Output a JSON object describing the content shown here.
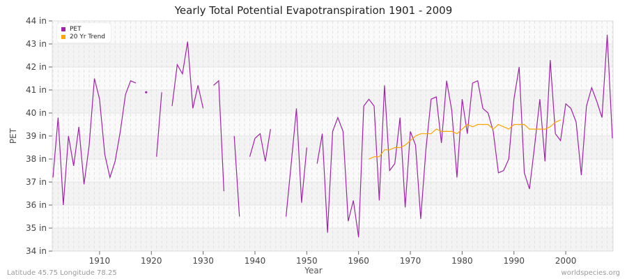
{
  "chart_data": {
    "type": "line",
    "title": "Yearly Total Potential Evapotranspiration 1901 - 2009",
    "xlabel": "Year",
    "ylabel": "PET",
    "xlim": [
      1901,
      2009
    ],
    "ylim": [
      34,
      44
    ],
    "yticks": [
      "34 in",
      "35 in",
      "36 in",
      "37 in",
      "38 in",
      "39 in",
      "40 in",
      "41 in",
      "42 in",
      "43 in",
      "44 in"
    ],
    "xticks": [
      "1910",
      "1920",
      "1930",
      "1940",
      "1950",
      "1960",
      "1970",
      "1980",
      "1990",
      "2000"
    ],
    "legend_position": "top-left",
    "grid": true,
    "series": [
      {
        "name": "PET",
        "color": "#a020a8",
        "start_year": 1901,
        "values": [
          37.2,
          39.8,
          36.0,
          39.0,
          37.7,
          39.4,
          36.9,
          38.6,
          41.5,
          40.6,
          38.2,
          37.2,
          37.9,
          39.2,
          40.8,
          41.4,
          41.3,
          null,
          40.9,
          null,
          38.1,
          40.9,
          null,
          40.3,
          42.1,
          41.7,
          43.1,
          40.2,
          41.2,
          40.2,
          null,
          41.2,
          41.4,
          36.6,
          null,
          39.0,
          35.5,
          null,
          38.1,
          38.9,
          39.1,
          37.9,
          39.3,
          null,
          null,
          35.5,
          37.8,
          40.2,
          36.1,
          38.5,
          null,
          37.8,
          39.1,
          34.8,
          39.2,
          39.8,
          39.2,
          35.3,
          36.2,
          34.6,
          40.3,
          40.6,
          40.3,
          36.2,
          41.2,
          37.5,
          37.8,
          39.8,
          35.9,
          39.2,
          38.6,
          35.4,
          38.4,
          40.6,
          40.7,
          38.7,
          41.4,
          40.1,
          37.2,
          40.6,
          39.1,
          41.3,
          41.4,
          40.2,
          40.0,
          39.2,
          37.4,
          37.5,
          38.0,
          40.6,
          42.0,
          37.4,
          36.7,
          38.6,
          40.6,
          37.9,
          42.3,
          39.1,
          38.8,
          40.4,
          40.2,
          39.6,
          37.3,
          40.3,
          41.1,
          40.5,
          39.8,
          43.4,
          38.9
        ]
      },
      {
        "name": "20 Yr Trend",
        "color": "#ffa500",
        "start_year": 1962,
        "values": [
          38.0,
          38.1,
          38.1,
          38.4,
          38.4,
          38.5,
          38.5,
          38.6,
          38.8,
          39.0,
          39.1,
          39.1,
          39.1,
          39.3,
          39.2,
          39.2,
          39.2,
          39.1,
          39.3,
          39.5,
          39.4,
          39.5,
          39.5,
          39.5,
          39.3,
          39.5,
          39.4,
          39.3,
          39.5,
          39.5,
          39.5,
          39.3,
          39.3,
          39.3,
          39.3,
          39.4,
          39.6,
          39.7
        ]
      }
    ]
  },
  "footer": {
    "location": "Latitude 45.75 Longitude 78.25",
    "source": "worldspecies.org"
  }
}
